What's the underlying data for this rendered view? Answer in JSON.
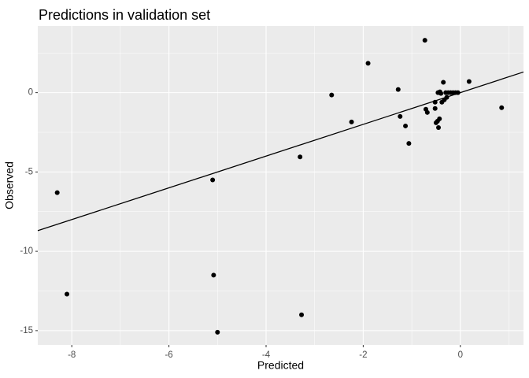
{
  "chart_data": {
    "type": "scatter",
    "title": "Predictions in validation set",
    "xlabel": "Predicted",
    "ylabel": "Observed",
    "xlim": [
      -8.7,
      1.3
    ],
    "ylim": [
      -15.9,
      4.2
    ],
    "x_ticks": [
      -8,
      -6,
      -4,
      -2,
      0
    ],
    "x_tick_labels": [
      "-8",
      "-6",
      "-4",
      "-2",
      "0"
    ],
    "y_ticks": [
      -15,
      -10,
      -5,
      0
    ],
    "y_tick_labels": [
      "-15",
      "-10",
      "-5",
      "0"
    ],
    "grid": true,
    "legend": "none",
    "reference_line": {
      "slope": 1,
      "intercept": 0
    },
    "colors": {
      "panel": "#ebebeb",
      "grid_major": "#ffffff",
      "points": "#000000",
      "line": "#000000",
      "tick_label": "#4d4d4d"
    },
    "points": [
      {
        "x": -8.3,
        "y": -6.3
      },
      {
        "x": -8.1,
        "y": -12.7
      },
      {
        "x": -5.1,
        "y": -5.5
      },
      {
        "x": -5.08,
        "y": -11.5
      },
      {
        "x": -5.0,
        "y": -15.1
      },
      {
        "x": -3.3,
        "y": -4.05
      },
      {
        "x": -3.27,
        "y": -14.0
      },
      {
        "x": -2.65,
        "y": -0.15
      },
      {
        "x": -2.24,
        "y": -1.85
      },
      {
        "x": -1.9,
        "y": 1.85
      },
      {
        "x": -1.28,
        "y": 0.2
      },
      {
        "x": -1.24,
        "y": -1.5
      },
      {
        "x": -1.13,
        "y": -2.1
      },
      {
        "x": -1.06,
        "y": -3.2
      },
      {
        "x": -0.73,
        "y": 3.3
      },
      {
        "x": -0.71,
        "y": -1.05
      },
      {
        "x": -0.68,
        "y": -1.25
      },
      {
        "x": -0.52,
        "y": -0.6
      },
      {
        "x": -0.52,
        "y": -1.0
      },
      {
        "x": -0.5,
        "y": -1.9
      },
      {
        "x": -0.47,
        "y": -1.8
      },
      {
        "x": -0.46,
        "y": 0.0
      },
      {
        "x": -0.45,
        "y": -2.2
      },
      {
        "x": -0.43,
        "y": -1.65
      },
      {
        "x": -0.42,
        "y": 0.05
      },
      {
        "x": -0.4,
        "y": -0.05
      },
      {
        "x": -0.38,
        "y": -0.6
      },
      {
        "x": -0.35,
        "y": 0.65
      },
      {
        "x": -0.33,
        "y": -0.45
      },
      {
        "x": -0.3,
        "y": 0.0
      },
      {
        "x": -0.28,
        "y": -0.3
      },
      {
        "x": -0.25,
        "y": 0.0
      },
      {
        "x": -0.2,
        "y": 0.0
      },
      {
        "x": -0.15,
        "y": 0.0
      },
      {
        "x": -0.1,
        "y": 0.0
      },
      {
        "x": -0.05,
        "y": 0.0
      },
      {
        "x": 0.18,
        "y": 0.7
      },
      {
        "x": 0.85,
        "y": -0.95
      }
    ]
  }
}
